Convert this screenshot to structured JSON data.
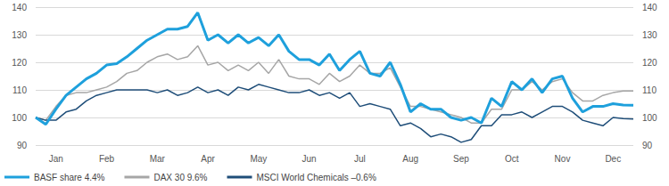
{
  "chart_data": {
    "type": "line",
    "categories": [
      null,
      null,
      "Jan",
      null,
      null,
      null,
      null,
      "Feb",
      null,
      null,
      null,
      null,
      "Mar",
      null,
      null,
      null,
      null,
      "Apr",
      null,
      null,
      null,
      null,
      "May",
      null,
      null,
      null,
      null,
      "Jun",
      null,
      null,
      null,
      null,
      "Jul",
      null,
      null,
      null,
      null,
      "Aug",
      null,
      null,
      null,
      null,
      "Sep",
      null,
      null,
      null,
      null,
      "Oct",
      null,
      null,
      null,
      null,
      "Nov",
      null,
      null,
      null,
      null,
      "Dec",
      null,
      null
    ],
    "series": [
      {
        "name": "BASF share 4.4%",
        "color": "#1ea0dc",
        "values": [
          100,
          97.5,
          103,
          108,
          111,
          114,
          116,
          119,
          119.5,
          122,
          125,
          128,
          130,
          132,
          132,
          133,
          138,
          128,
          130,
          127,
          130,
          127,
          129,
          126,
          130,
          124,
          121,
          121,
          119,
          123,
          117,
          121,
          124,
          116,
          115,
          120,
          112,
          102,
          105,
          103,
          103,
          100,
          99,
          100,
          98,
          107,
          104,
          113,
          110,
          114,
          109,
          114,
          115,
          107,
          102,
          104,
          104,
          105,
          104.5,
          104.4
        ]
      },
      {
        "name": "DAX 30 9.6%",
        "color": "#a6a6a6",
        "values": [
          100,
          99,
          104,
          108,
          109,
          109,
          110,
          111,
          113,
          116,
          117,
          120,
          122,
          123,
          121,
          122,
          126,
          119,
          120,
          117,
          119,
          117,
          120,
          116,
          121,
          115,
          114,
          114,
          112,
          116,
          113,
          115,
          119,
          116,
          116,
          118,
          111,
          104,
          104,
          103,
          102,
          101,
          100,
          98,
          98,
          103,
          103,
          110,
          110,
          113,
          110,
          113,
          114,
          109,
          106,
          106,
          108,
          109,
          109.6,
          109.6
        ]
      },
      {
        "name": "MSCI World Chemicals –0.6%",
        "color": "#1f4e79",
        "values": [
          100,
          99,
          99,
          102,
          103,
          106,
          108,
          109,
          110,
          110,
          110,
          110,
          109,
          110,
          108,
          109,
          111,
          109,
          110,
          108,
          111,
          110,
          112,
          111,
          110,
          109,
          109,
          110,
          108,
          109,
          107,
          109,
          104,
          105,
          104,
          103,
          97,
          98,
          96,
          93,
          94,
          93,
          91,
          92,
          97,
          97,
          101,
          101,
          102,
          100,
          102,
          104,
          104,
          102,
          99,
          98,
          97,
          100,
          99.6,
          99.4
        ]
      }
    ],
    "ylim": [
      90,
      140
    ],
    "yticks": [
      90,
      100,
      110,
      120,
      130,
      140
    ],
    "grid": true,
    "legend": "bottom-left"
  }
}
